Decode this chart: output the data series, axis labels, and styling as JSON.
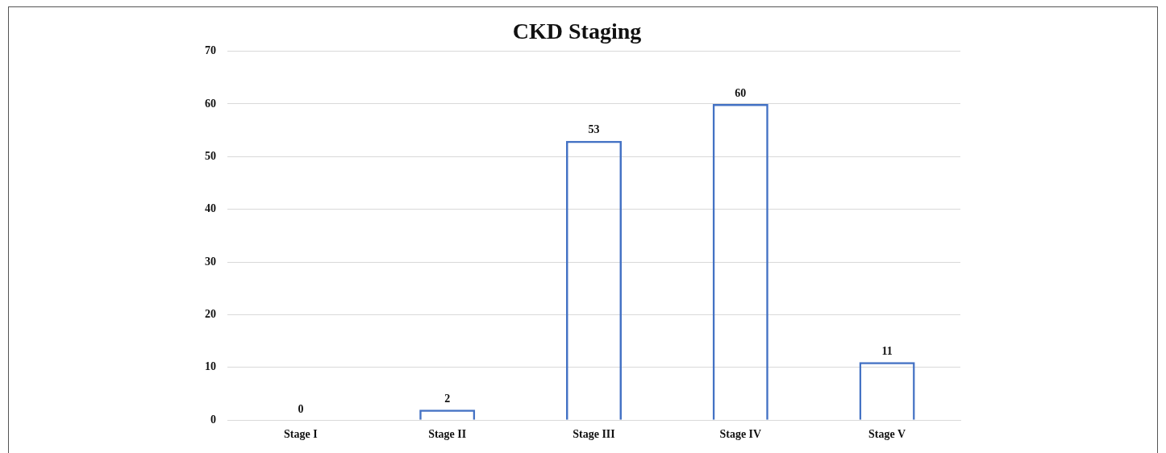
{
  "chart_data": {
    "type": "bar",
    "title": "CKD Staging",
    "categories": [
      "Stage I",
      "Stage II",
      "Stage III",
      "Stage IV",
      "Stage V"
    ],
    "values": [
      0,
      2,
      53,
      60,
      11
    ],
    "color": "#4472c4",
    "ylim": [
      0,
      70
    ],
    "yticks": [
      0,
      10,
      20,
      30,
      40,
      50,
      60,
      70
    ],
    "grid": "y",
    "data_labels": true
  }
}
